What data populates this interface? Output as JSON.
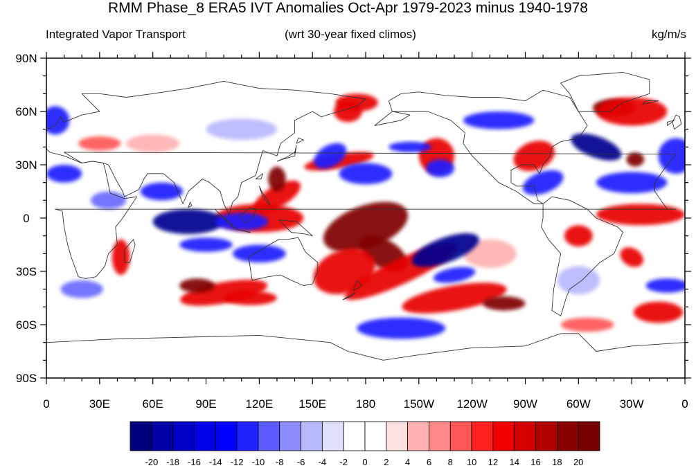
{
  "title": "RMM Phase_8 ERA5 IVT Anomalies Oct-Apr 1979-2023 minus 1940-1978",
  "left_string": "Integrated Vapor Transport",
  "center_string": "(wrt 30-year fixed climos)",
  "right_string": "kg/m/s",
  "axes": {
    "lat_labels": [
      "90N",
      "60N",
      "30N",
      "0",
      "30S",
      "60S",
      "90S"
    ],
    "lon_labels": [
      "0",
      "30E",
      "60E",
      "90E",
      "120E",
      "150E",
      "180",
      "150W",
      "120W",
      "90W",
      "60W",
      "30W",
      "0"
    ]
  },
  "colorbar": {
    "labels": [
      "-20",
      "-18",
      "-16",
      "-14",
      "-12",
      "-10",
      "-8",
      "-6",
      "-4",
      "-2",
      "0",
      "2",
      "4",
      "6",
      "8",
      "10",
      "12",
      "14",
      "16",
      "18",
      "20"
    ],
    "colors": [
      "#00007f",
      "#0000a6",
      "#0000c8",
      "#0000e6",
      "#0000ff",
      "#2222ff",
      "#5a5aff",
      "#8c8cff",
      "#b8b8ff",
      "#e2e2ff",
      "#ffffff",
      "#ffffff",
      "#ffe0e0",
      "#ffb0b0",
      "#ff8888",
      "#ff5656",
      "#ff2020",
      "#f00000",
      "#d40000",
      "#b00000",
      "#8a0000",
      "#760000"
    ]
  },
  "map": {
    "projection": "cylindrical-equidistant",
    "lon_range": [
      0,
      360
    ],
    "lat_range": [
      -90,
      90
    ],
    "colors": {
      "dark_red": "#800000",
      "red": "#e80000",
      "mid_red": "#ff5656",
      "light_red": "#ffb0b0",
      "dark_blue": "#00008f",
      "blue": "#1a1aff",
      "mid_blue": "#6a6aff",
      "light_blue": "#b8b8ff",
      "coast": "#333333"
    },
    "features": [
      {
        "c": "dark_red",
        "lon": 180,
        "lat": -5,
        "rx": 25,
        "ry": 12,
        "rot": -20
      },
      {
        "c": "dark_red",
        "lon": 190,
        "lat": -20,
        "rx": 15,
        "ry": 8,
        "rot": 30
      },
      {
        "c": "red",
        "lon": 168,
        "lat": -30,
        "rx": 18,
        "ry": 12,
        "rot": -20
      },
      {
        "c": "red",
        "lon": 200,
        "lat": -30,
        "rx": 35,
        "ry": 7,
        "rot": -25
      },
      {
        "c": "red",
        "lon": 230,
        "lat": -45,
        "rx": 30,
        "ry": 7,
        "rot": -10
      },
      {
        "c": "dark_red",
        "lon": 258,
        "lat": -48,
        "rx": 12,
        "ry": 4,
        "rot": 0
      },
      {
        "c": "red",
        "lon": 120,
        "lat": 0,
        "rx": 25,
        "ry": 8,
        "rot": 0
      },
      {
        "c": "red",
        "lon": 130,
        "lat": 12,
        "rx": 15,
        "ry": 6,
        "rot": -30
      },
      {
        "c": "dark_red",
        "lon": 130,
        "lat": 22,
        "rx": 5,
        "ry": 7,
        "rot": 0
      },
      {
        "c": "red",
        "lon": 100,
        "lat": -42,
        "rx": 25,
        "ry": 6,
        "rot": -10
      },
      {
        "c": "dark_red",
        "lon": 85,
        "lat": -38,
        "rx": 10,
        "ry": 4,
        "rot": 0
      },
      {
        "c": "red",
        "lon": 115,
        "lat": -45,
        "rx": 15,
        "ry": 4,
        "rot": 0
      },
      {
        "c": "red",
        "lon": 42,
        "lat": -22,
        "rx": 5,
        "ry": 10,
        "rot": 0
      },
      {
        "c": "red",
        "lon": 165,
        "lat": 32,
        "rx": 20,
        "ry": 4,
        "rot": -10
      },
      {
        "c": "red",
        "lon": 175,
        "lat": 65,
        "rx": 12,
        "ry": 5,
        "rot": 0
      },
      {
        "c": "red",
        "lon": 220,
        "lat": 35,
        "rx": 10,
        "ry": 10,
        "rot": 20
      },
      {
        "c": "red",
        "lon": 275,
        "lat": 35,
        "rx": 12,
        "ry": 8,
        "rot": -20
      },
      {
        "c": "dark_red",
        "lon": 320,
        "lat": 62,
        "rx": 12,
        "ry": 5,
        "rot": 0
      },
      {
        "c": "red",
        "lon": 330,
        "lat": 60,
        "rx": 20,
        "ry": 8,
        "rot": 0
      },
      {
        "c": "dark_red",
        "lon": 332,
        "lat": 33,
        "rx": 5,
        "ry": 4,
        "rot": 0
      },
      {
        "c": "red",
        "lon": 335,
        "lat": 2,
        "rx": 25,
        "ry": 6,
        "rot": 0
      },
      {
        "c": "red",
        "lon": 300,
        "lat": -10,
        "rx": 8,
        "ry": 6,
        "rot": 0
      },
      {
        "c": "red",
        "lon": 330,
        "lat": -22,
        "rx": 7,
        "ry": 5,
        "rot": 30
      },
      {
        "c": "red",
        "lon": 345,
        "lat": -53,
        "rx": 14,
        "ry": 6,
        "rot": 0
      },
      {
        "c": "mid_red",
        "lon": 305,
        "lat": -60,
        "rx": 15,
        "ry": 4,
        "rot": 0
      },
      {
        "c": "mid_red",
        "lon": 30,
        "lat": 42,
        "rx": 12,
        "ry": 4,
        "rot": 0
      },
      {
        "c": "light_red",
        "lon": 60,
        "lat": 42,
        "rx": 15,
        "ry": 5,
        "rot": 0
      },
      {
        "c": "red",
        "lon": 170,
        "lat": 60,
        "rx": 8,
        "ry": 6,
        "rot": 0
      },
      {
        "c": "light_red",
        "lon": 250,
        "lat": -20,
        "rx": 15,
        "ry": 8,
        "rot": 0
      },
      {
        "c": "dark_blue",
        "lon": 80,
        "lat": -2,
        "rx": 20,
        "ry": 7,
        "rot": 0
      },
      {
        "c": "blue",
        "lon": 110,
        "lat": -2,
        "rx": 15,
        "ry": 5,
        "rot": 0
      },
      {
        "c": "blue",
        "lon": 65,
        "lat": 15,
        "rx": 12,
        "ry": 5,
        "rot": 0
      },
      {
        "c": "blue",
        "lon": 90,
        "lat": -15,
        "rx": 15,
        "ry": 4,
        "rot": 0
      },
      {
        "c": "blue",
        "lon": 120,
        "lat": -20,
        "rx": 15,
        "ry": 5,
        "rot": 0
      },
      {
        "c": "dark_blue",
        "lon": 225,
        "lat": -18,
        "rx": 20,
        "ry": 7,
        "rot": -20
      },
      {
        "c": "blue",
        "lon": 230,
        "lat": -32,
        "rx": 12,
        "ry": 4,
        "rot": -10
      },
      {
        "c": "blue",
        "lon": 200,
        "lat": -62,
        "rx": 25,
        "ry": 6,
        "rot": 0
      },
      {
        "c": "blue",
        "lon": 160,
        "lat": 35,
        "rx": 10,
        "ry": 6,
        "rot": -30
      },
      {
        "c": "blue",
        "lon": 180,
        "lat": 25,
        "rx": 15,
        "ry": 6,
        "rot": 0
      },
      {
        "c": "blue",
        "lon": 205,
        "lat": 40,
        "rx": 12,
        "ry": 3,
        "rot": 0
      },
      {
        "c": "blue",
        "lon": 222,
        "lat": 28,
        "rx": 8,
        "ry": 5,
        "rot": 0
      },
      {
        "c": "dark_blue",
        "lon": 310,
        "lat": 40,
        "rx": 15,
        "ry": 6,
        "rot": 20
      },
      {
        "c": "blue",
        "lon": 330,
        "lat": 20,
        "rx": 20,
        "ry": 6,
        "rot": 0
      },
      {
        "c": "blue",
        "lon": 355,
        "lat": 35,
        "rx": 10,
        "ry": 10,
        "rot": 0
      },
      {
        "c": "blue",
        "lon": 255,
        "lat": 55,
        "rx": 20,
        "ry": 5,
        "rot": 0
      },
      {
        "c": "blue",
        "lon": 280,
        "lat": 20,
        "rx": 12,
        "ry": 6,
        "rot": -20
      },
      {
        "c": "blue",
        "lon": 350,
        "lat": -38,
        "rx": 12,
        "ry": 4,
        "rot": 0
      },
      {
        "c": "blue",
        "lon": 5,
        "lat": 55,
        "rx": 8,
        "ry": 8,
        "rot": 0
      },
      {
        "c": "blue",
        "lon": 10,
        "lat": 25,
        "rx": 10,
        "ry": 5,
        "rot": 0
      },
      {
        "c": "mid_blue",
        "lon": 35,
        "lat": 10,
        "rx": 10,
        "ry": 5,
        "rot": 0
      },
      {
        "c": "mid_blue",
        "lon": 20,
        "lat": -40,
        "rx": 12,
        "ry": 5,
        "rot": 0
      },
      {
        "c": "light_blue",
        "lon": 110,
        "lat": 50,
        "rx": 20,
        "ry": 6,
        "rot": 0
      },
      {
        "c": "light_blue",
        "lon": 300,
        "lat": -35,
        "rx": 12,
        "ry": 8,
        "rot": 0
      }
    ]
  }
}
